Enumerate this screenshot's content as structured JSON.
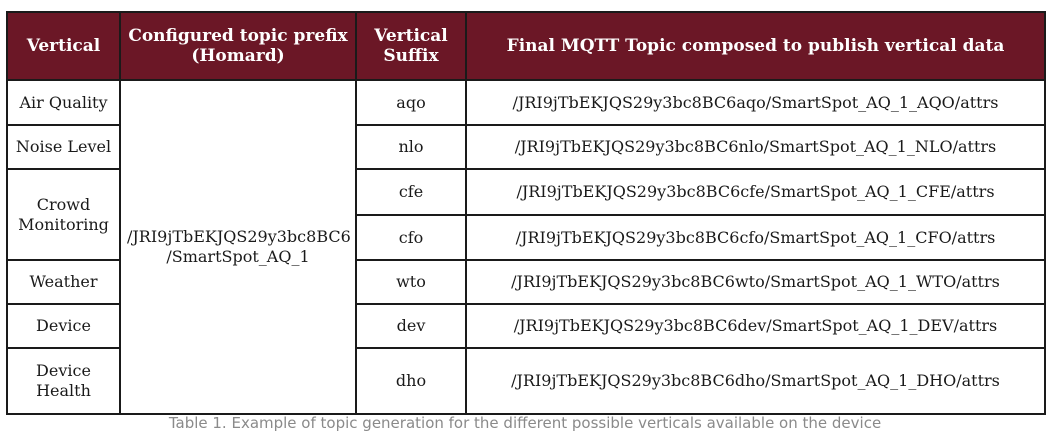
{
  "table": {
    "headers": {
      "vertical": "Vertical",
      "prefix_line1": "Configured topic prefix",
      "prefix_line2": "(Homard)",
      "suffix_line1": "Vertical",
      "suffix_line2": "Suffix",
      "final_topic": "Final MQTT Topic composed to publish vertical data"
    },
    "prefix": {
      "line1": "/JRI9jTbEKJQS29y3bc8BC6",
      "line2": "/SmartSpot_AQ_1"
    },
    "verticals": {
      "air_quality": "Air Quality",
      "noise_level": "Noise Level",
      "crowd_monitoring_line1": "Crowd",
      "crowd_monitoring_line2": "Monitoring",
      "weather": "Weather",
      "device": "Device",
      "device_health_line1": "Device",
      "device_health_line2": "Health"
    },
    "rows": [
      {
        "suffix": "aqo",
        "topic": "/JRI9jTbEKJQS29y3bc8BC6aqo/SmartSpot_AQ_1_AQO/attrs"
      },
      {
        "suffix": "nlo",
        "topic": "/JRI9jTbEKJQS29y3bc8BC6nlo/SmartSpot_AQ_1_NLO/attrs"
      },
      {
        "suffix": "cfe",
        "topic": "/JRI9jTbEKJQS29y3bc8BC6cfe/SmartSpot_AQ_1_CFE/attrs"
      },
      {
        "suffix": "cfo",
        "topic": "/JRI9jTbEKJQS29y3bc8BC6cfo/SmartSpot_AQ_1_CFO/attrs"
      },
      {
        "suffix": "wto",
        "topic": "/JRI9jTbEKJQS29y3bc8BC6wto/SmartSpot_AQ_1_WTO/attrs"
      },
      {
        "suffix": "dev",
        "topic": "/JRI9jTbEKJQS29y3bc8BC6dev/SmartSpot_AQ_1_DEV/attrs"
      },
      {
        "suffix": "dho",
        "topic": "/JRI9jTbEKJQS29y3bc8BC6dho/SmartSpot_AQ_1_DHO/attrs"
      }
    ],
    "header_color": "#6b1726"
  },
  "caption": "Table 1. Example of topic generation for the different possible verticals available on the device"
}
